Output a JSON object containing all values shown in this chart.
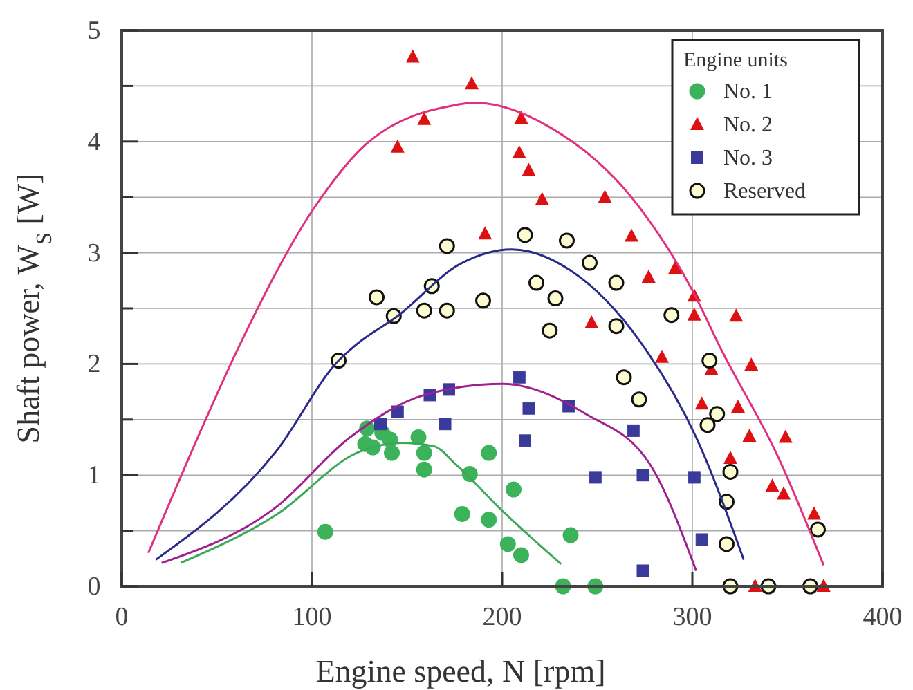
{
  "chart_data": {
    "type": "scatter",
    "xlabel": "Engine speed, N [rpm]",
    "ylabel": "Shaft power, W$_{S}$ [W]",
    "legend_title": "Engine units",
    "legend": "top right",
    "grid": true,
    "xlim": [
      0,
      400
    ],
    "xticks": [
      0,
      100,
      200,
      300,
      400
    ],
    "ylim": [
      0,
      5
    ],
    "yticks": [
      0,
      {
        "value": 0.5,
        "label": null
      },
      1,
      {
        "value": 1.5,
        "label": null
      },
      2,
      {
        "value": 2.5,
        "label": null
      },
      3,
      {
        "value": 3.5,
        "label": null
      },
      4,
      {
        "value": 4.5,
        "label": null
      },
      5
    ],
    "series": [
      {
        "name": "No. 1",
        "color": "#3cb35a",
        "marker": "circle",
        "x": [
          107,
          129,
          128,
          137,
          132,
          141,
          142,
          156,
          159,
          159,
          193,
          183,
          206,
          179,
          193,
          236,
          203,
          210,
          232,
          249
        ],
        "values": [
          0.49,
          1.42,
          1.28,
          1.38,
          1.25,
          1.32,
          1.2,
          1.34,
          1.2,
          1.05,
          1.2,
          1.01,
          0.87,
          0.65,
          0.6,
          0.46,
          0.38,
          0.28,
          0,
          0
        ]
      },
      {
        "name": "No. 2",
        "color": "#dd1111",
        "marker": "triangle",
        "x": [
          153,
          159,
          145,
          184,
          210,
          209,
          214,
          221,
          254,
          191,
          268,
          291,
          277,
          301,
          247,
          301,
          323,
          284,
          331,
          310,
          305,
          324,
          330,
          349,
          320,
          342,
          348,
          364,
          333,
          369
        ],
        "values": [
          4.76,
          4.2,
          3.95,
          4.52,
          4.21,
          3.9,
          3.74,
          3.48,
          3.5,
          3.17,
          3.15,
          2.86,
          2.78,
          2.61,
          2.37,
          2.44,
          2.43,
          2.06,
          1.99,
          1.95,
          1.64,
          1.61,
          1.35,
          1.34,
          1.15,
          0.9,
          0.83,
          0.65,
          0,
          0
        ]
      },
      {
        "name": "No. 3",
        "color": "#3a3a9a",
        "marker": "square",
        "x": [
          136,
          145,
          162,
          172,
          170,
          209,
          214,
          235,
          212,
          269,
          249,
          274,
          301,
          305,
          274
        ],
        "values": [
          1.46,
          1.57,
          1.72,
          1.77,
          1.46,
          1.88,
          1.6,
          1.62,
          1.31,
          1.4,
          0.98,
          1.0,
          0.98,
          0.42,
          0.14
        ]
      },
      {
        "name": "Reserved",
        "color": "#fdfbd0",
        "marker": "circle",
        "x": [
          171,
          134,
          143,
          163,
          159,
          171,
          114,
          212,
          234,
          246,
          218,
          228,
          260,
          190,
          225,
          260,
          289,
          309,
          264,
          272,
          313,
          308,
          320,
          318,
          318,
          366,
          320,
          340,
          362
        ],
        "values": [
          3.06,
          2.6,
          2.43,
          2.7,
          2.48,
          2.48,
          2.03,
          3.16,
          3.11,
          2.91,
          2.73,
          2.59,
          2.73,
          2.57,
          2.3,
          2.34,
          2.44,
          2.03,
          1.88,
          1.68,
          1.55,
          1.45,
          1.03,
          0.76,
          0.38,
          0.51,
          0,
          0,
          0
        ]
      },
      {
        "type": "line",
        "color": "#e0307f",
        "marker": "none",
        "x": [
          14,
          40,
          62,
          103,
          130,
          176,
          185,
          225,
          273,
          301,
          314,
          346,
          369
        ],
        "values": [
          0.3,
          1.34,
          2.17,
          3.45,
          4.0,
          4.33,
          4.35,
          4.13,
          3.39,
          2.63,
          2.17,
          1.13,
          0.19
        ]
      },
      {
        "type": "line",
        "color": "#2a2a8a",
        "marker": "none",
        "x": [
          18,
          81,
          114,
          123,
          145,
          178,
          205,
          236,
          273,
          302,
          327
        ],
        "values": [
          0.24,
          1.21,
          2.03,
          2.17,
          2.43,
          2.9,
          3.03,
          2.84,
          2.19,
          1.34,
          0.24
        ]
      },
      {
        "type": "line",
        "color": "#a0208f",
        "marker": "none",
        "x": [
          21,
          81,
          120,
          159,
          200,
          244,
          278,
          302
        ],
        "values": [
          0.21,
          0.71,
          1.34,
          1.72,
          1.82,
          1.55,
          1.09,
          0.14
        ]
      },
      {
        "type": "line",
        "color": "#3aaa5a",
        "marker": "none",
        "x": [
          31,
          81,
          125,
          147,
          164,
          176,
          200,
          231
        ],
        "values": [
          0.21,
          0.64,
          1.21,
          1.29,
          1.26,
          1.09,
          0.68,
          0.2
        ]
      }
    ]
  }
}
